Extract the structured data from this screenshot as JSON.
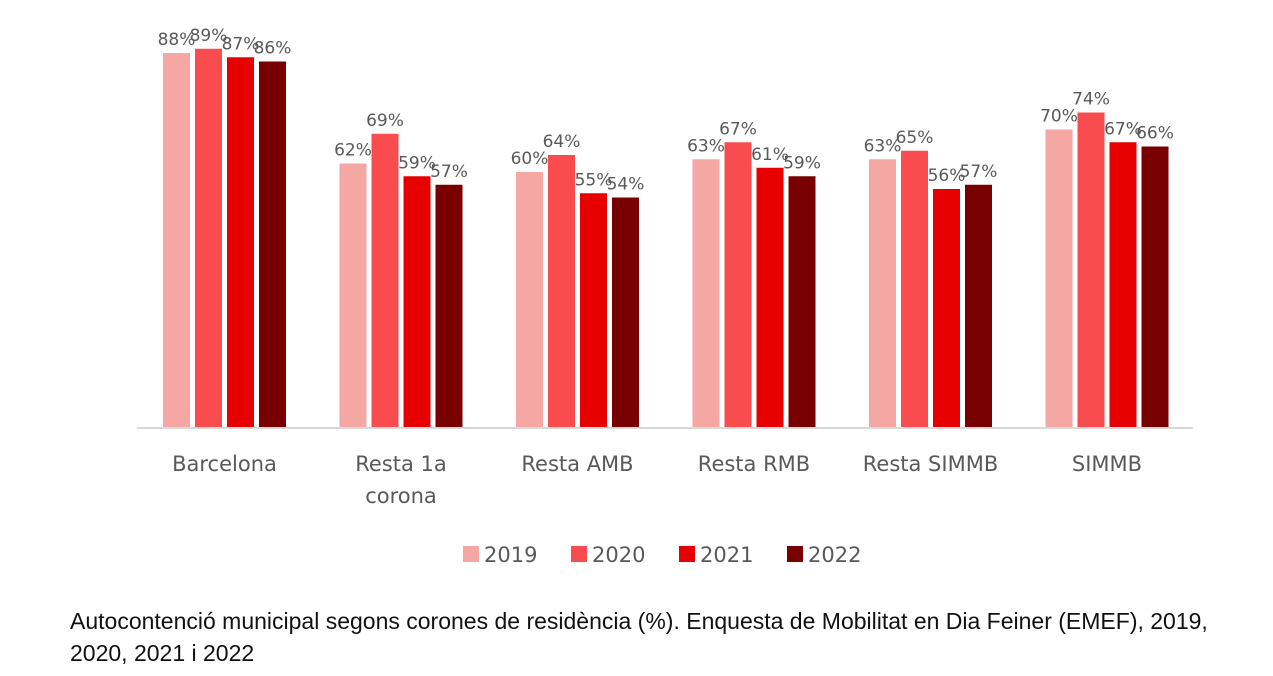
{
  "caption": "Autocontenció municipal segons corones de residència (%). Enquesta de Mobilitat en Dia Feiner (EMEF), 2019, 2020, 2021 i 2022",
  "chart_data": {
    "type": "bar",
    "categories": [
      [
        "Barcelona"
      ],
      [
        "Resta 1a",
        "corona"
      ],
      [
        "Resta AMB"
      ],
      [
        "Resta RMB"
      ],
      [
        "Resta SIMMB"
      ],
      [
        "SIMMB"
      ]
    ],
    "series": [
      {
        "name": "2019",
        "color": "#f4a7a3",
        "values": [
          88,
          62,
          60,
          63,
          63,
          70
        ]
      },
      {
        "name": "2020",
        "color": "#f94c4e",
        "values": [
          89,
          69,
          64,
          67,
          65,
          74
        ]
      },
      {
        "name": "2021",
        "color": "#e60000",
        "values": [
          87,
          59,
          55,
          61,
          56,
          67
        ]
      },
      {
        "name": "2022",
        "color": "#780000",
        "values": [
          86,
          57,
          54,
          59,
          57,
          66
        ]
      }
    ],
    "value_suffix": "%",
    "ylim": [
      0,
      100
    ],
    "grid": false,
    "legend_position": "bottom"
  }
}
